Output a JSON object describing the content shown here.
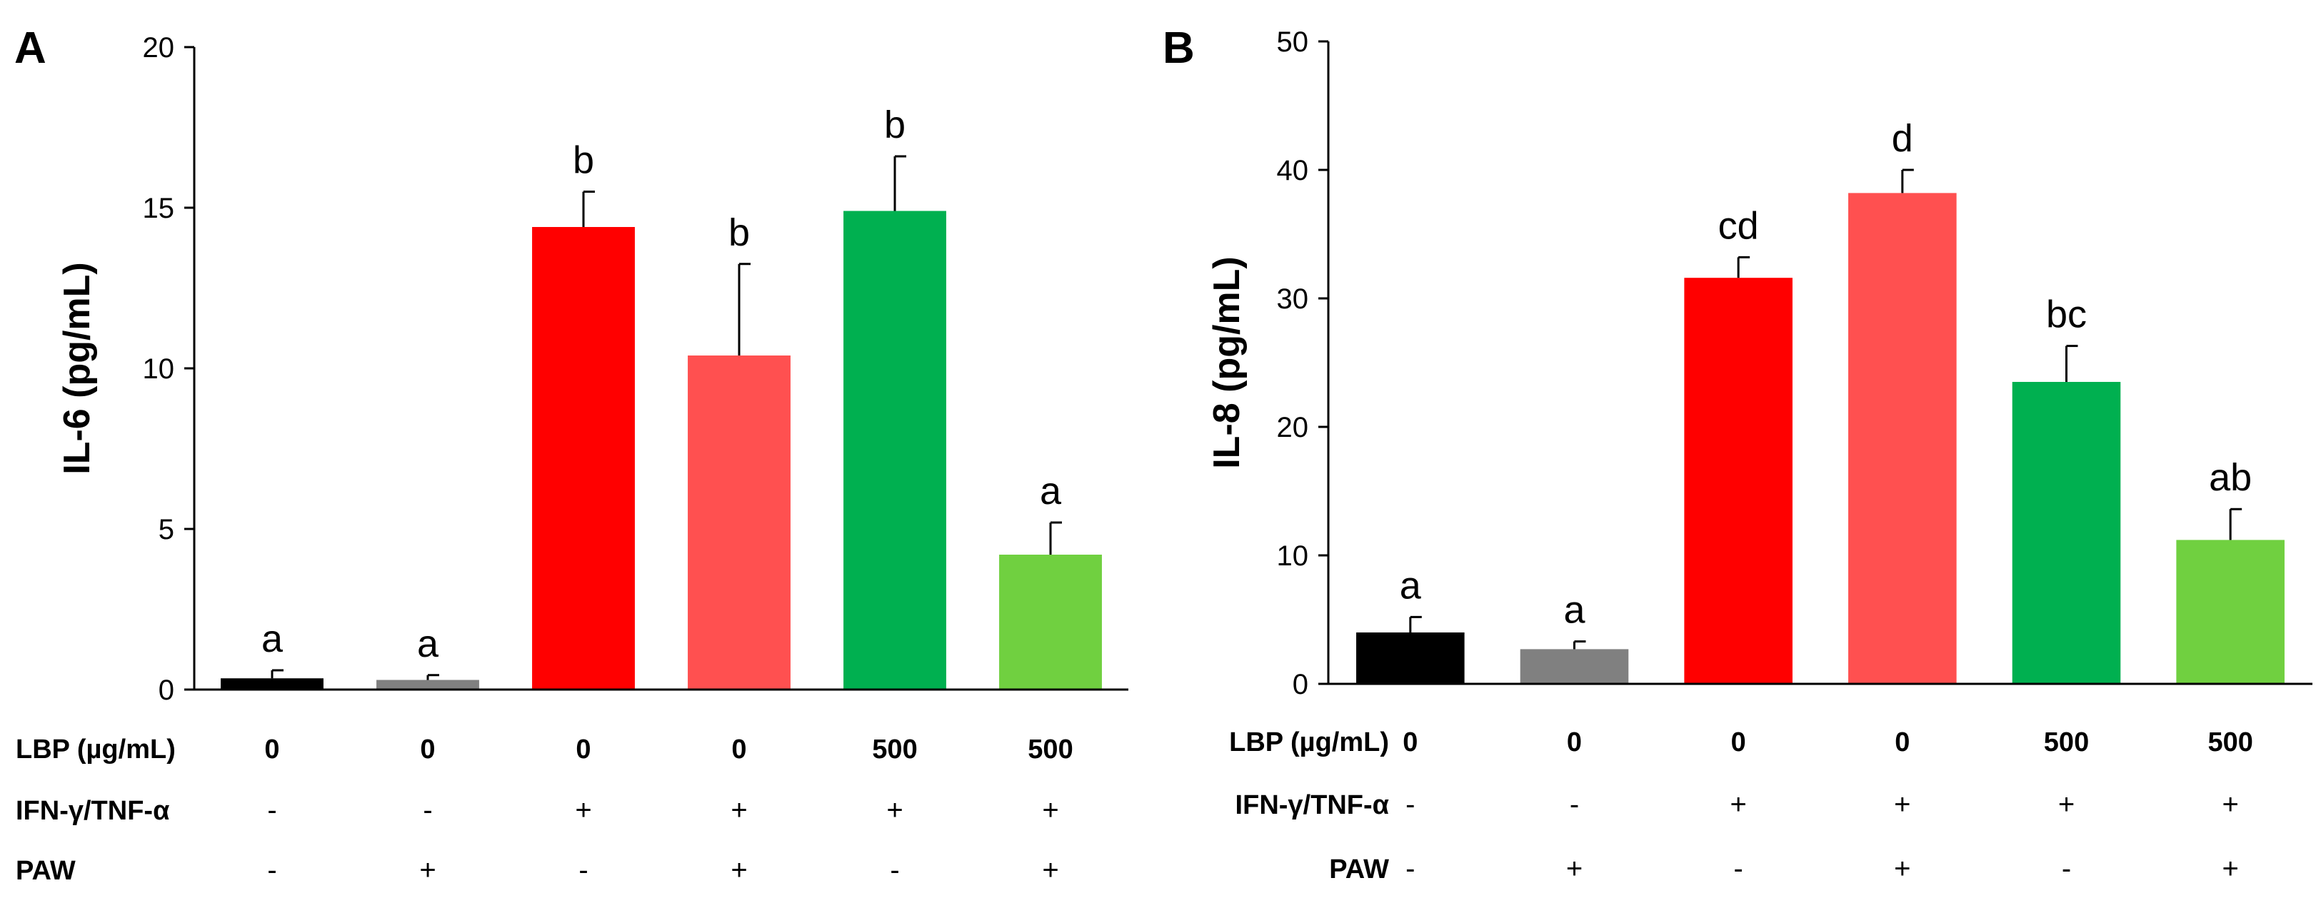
{
  "chart_data": [
    {
      "type": "bar",
      "panel_label": "A",
      "title": "",
      "xlabel": "",
      "ylabel": "IL-6 (pg/mL)",
      "ylim": [
        0,
        20
      ],
      "yticks": [
        0,
        5,
        10,
        15,
        20
      ],
      "grid": false,
      "legend": "none",
      "values": [
        0.35,
        0.3,
        14.4,
        10.4,
        14.9,
        4.2
      ],
      "errors": [
        0.25,
        0.15,
        1.1,
        2.85,
        1.7,
        1.0
      ],
      "significance": [
        "a",
        "a",
        "b",
        "b",
        "b",
        "a"
      ],
      "colors": [
        "#000000",
        "#808080",
        "#ff0000",
        "#ff5050",
        "#00b050",
        "#70d040"
      ],
      "treatments": [
        {
          "label": "LBP (µg/mL)",
          "values": [
            "0",
            "0",
            "0",
            "0",
            "500",
            "500"
          ]
        },
        {
          "label": "IFN-γ/TNF-α",
          "values": [
            "-",
            "-",
            "+",
            "+",
            "+",
            "+"
          ]
        },
        {
          "label": "PAW",
          "values": [
            "-",
            "+",
            "-",
            "+",
            "-",
            "+"
          ]
        }
      ]
    },
    {
      "type": "bar",
      "panel_label": "B",
      "title": "",
      "xlabel": "",
      "ylabel": "IL-8 (pg/mL)",
      "ylim": [
        0,
        50
      ],
      "yticks": [
        0,
        10,
        20,
        30,
        40,
        50
      ],
      "grid": false,
      "legend": "none",
      "values": [
        4.0,
        2.7,
        31.6,
        38.2,
        23.5,
        11.2
      ],
      "errors": [
        1.2,
        0.6,
        1.6,
        1.8,
        2.8,
        2.4
      ],
      "significance": [
        "a",
        "a",
        "cd",
        "d",
        "bc",
        "ab"
      ],
      "colors": [
        "#000000",
        "#808080",
        "#ff0000",
        "#ff5050",
        "#00b050",
        "#70d040"
      ],
      "treatments": [
        {
          "label": "LBP (µg/mL)",
          "values": [
            "0",
            "0",
            "0",
            "0",
            "500",
            "500"
          ]
        },
        {
          "label": "IFN-γ/TNF-α",
          "values": [
            "-",
            "-",
            "+",
            "+",
            "+",
            "+"
          ]
        },
        {
          "label": "PAW",
          "values": [
            "-",
            "+",
            "-",
            "+",
            "-",
            "+"
          ]
        }
      ]
    }
  ]
}
